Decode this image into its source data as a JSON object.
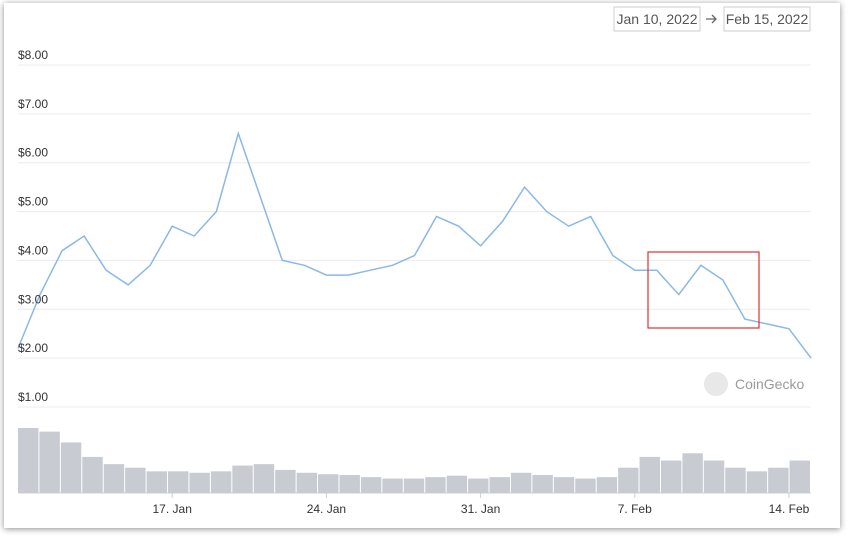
{
  "chart_data": {
    "type": "line",
    "date_range": {
      "from": "Jan 10, 2022",
      "to": "Feb 15, 2022"
    },
    "watermark": "CoinGecko",
    "x": [
      "2022-01-10",
      "2022-01-11",
      "2022-01-12",
      "2022-01-13",
      "2022-01-14",
      "2022-01-15",
      "2022-01-16",
      "2022-01-17",
      "2022-01-18",
      "2022-01-19",
      "2022-01-20",
      "2022-01-21",
      "2022-01-22",
      "2022-01-23",
      "2022-01-24",
      "2022-01-25",
      "2022-01-26",
      "2022-01-27",
      "2022-01-28",
      "2022-01-29",
      "2022-01-30",
      "2022-01-31",
      "2022-02-01",
      "2022-02-02",
      "2022-02-03",
      "2022-02-04",
      "2022-02-05",
      "2022-02-06",
      "2022-02-07",
      "2022-02-08",
      "2022-02-09",
      "2022-02-10",
      "2022-02-11",
      "2022-02-12",
      "2022-02-13",
      "2022-02-14",
      "2022-02-15"
    ],
    "series": [
      {
        "color": "#8ab8e8",
        "values": [
          2.2,
          3.3,
          4.2,
          4.5,
          3.8,
          3.5,
          3.9,
          4.7,
          4.5,
          5.0,
          6.6,
          5.3,
          4.0,
          3.9,
          3.7,
          3.7,
          3.8,
          3.9,
          4.1,
          4.9,
          4.7,
          4.3,
          4.8,
          5.5,
          5.0,
          4.7,
          4.9,
          4.1,
          3.8,
          3.8,
          3.3,
          3.9,
          3.6,
          2.8,
          2.7,
          2.6,
          2.0
        ]
      }
    ],
    "volume": [
      90,
      85,
      70,
      50,
      40,
      35,
      30,
      30,
      28,
      30,
      38,
      40,
      32,
      28,
      26,
      25,
      22,
      20,
      20,
      22,
      24,
      20,
      22,
      28,
      25,
      22,
      20,
      22,
      35,
      50,
      45,
      55,
      45,
      35,
      30,
      35,
      45
    ],
    "volume_color": "#c8ccd2",
    "xlim": [
      "2022-01-10",
      "2022-02-15"
    ],
    "xticks": [
      {
        "value": "2022-01-17",
        "label": "17. Jan"
      },
      {
        "value": "2022-01-24",
        "label": "24. Jan"
      },
      {
        "value": "2022-01-31",
        "label": "31. Jan"
      },
      {
        "value": "2022-02-07",
        "label": "7. Feb"
      },
      {
        "value": "2022-02-14",
        "label": "14. Feb"
      }
    ],
    "ylim": [
      1,
      8
    ],
    "yticks": [
      {
        "value": 1,
        "label": "$1.00"
      },
      {
        "value": 2,
        "label": "$2.00"
      },
      {
        "value": 3,
        "label": "$3.00"
      },
      {
        "value": 4,
        "label": "$4.00"
      },
      {
        "value": 5,
        "label": "$5.00"
      },
      {
        "value": 6,
        "label": "$6.00"
      },
      {
        "value": 7,
        "label": "$7.00"
      },
      {
        "value": 8,
        "label": "$8.00"
      }
    ],
    "grid": true
  }
}
